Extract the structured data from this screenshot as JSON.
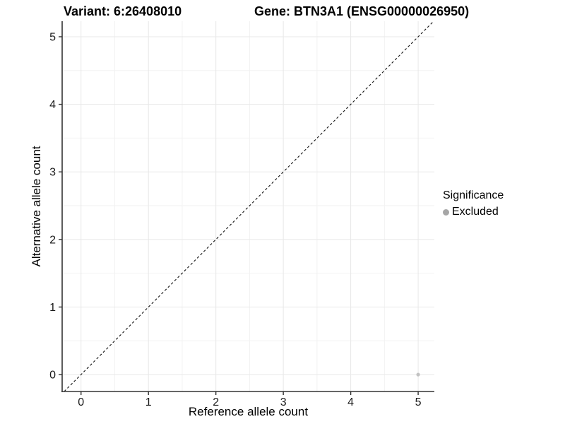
{
  "titles": {
    "left": "Variant: 6:26408010",
    "right": "Gene: BTN3A1 (ENSG00000026950)"
  },
  "chart_data": {
    "type": "scatter",
    "xlabel": "Reference allele count",
    "ylabel": "Alternative allele count",
    "xlim": [
      -0.28,
      5.24
    ],
    "ylim": [
      -0.25,
      5.23
    ],
    "xticks": [
      "0",
      "1",
      "2",
      "3",
      "4",
      "5"
    ],
    "yticks": [
      "0",
      "1",
      "2",
      "3",
      "4",
      "5"
    ],
    "grid": {
      "major": true,
      "minor": true
    },
    "legend_position": "right",
    "identity_line": {
      "show": true,
      "style": "dashed",
      "slope": 1,
      "intercept": 0
    },
    "series": [
      {
        "name": "Excluded",
        "color": "#c2c2c2",
        "points": [
          {
            "x": 5,
            "y": 0
          }
        ]
      }
    ]
  },
  "legend": {
    "title": "Significance",
    "items": [
      {
        "label": "Excluded",
        "color": "#a6a6a6"
      }
    ]
  },
  "colors": {
    "background": "#ffffff",
    "axis_line": "#333333",
    "tick_mark": "#333333",
    "tick_label": "#1a1a1a",
    "grid_major": "#e8e8e8",
    "grid_minor": "#f2f2f2",
    "identity_line": "#111111"
  }
}
